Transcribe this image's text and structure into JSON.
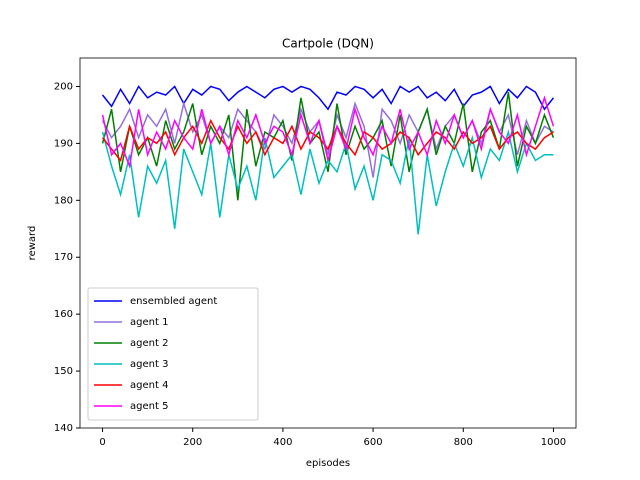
{
  "chart_data": {
    "type": "line",
    "title": "Cartpole (DQN)",
    "x_label": "episodes",
    "y_label": "reward",
    "x": [
      0,
      20,
      40,
      60,
      80,
      100,
      120,
      140,
      160,
      180,
      200,
      220,
      240,
      260,
      280,
      300,
      320,
      340,
      360,
      380,
      400,
      420,
      440,
      460,
      480,
      500,
      520,
      540,
      560,
      580,
      600,
      620,
      640,
      660,
      680,
      700,
      720,
      740,
      760,
      780,
      800,
      820,
      840,
      860,
      880,
      900,
      920,
      940,
      960,
      980,
      1000
    ],
    "series": [
      {
        "name": "ensembled agent",
        "color": "#0000ff",
        "values": [
          198.5,
          196.5,
          199.5,
          197,
          200,
          198,
          199,
          198.5,
          200,
          197,
          199.5,
          198.5,
          200,
          199.5,
          197.5,
          199,
          200,
          199,
          198,
          199.5,
          200,
          199,
          200,
          199.5,
          198,
          196,
          199,
          198.5,
          200,
          199.5,
          198,
          199.5,
          197,
          200,
          199,
          200,
          198,
          199,
          197.5,
          199.5,
          196.5,
          198.5,
          199,
          200,
          197,
          199.5,
          198,
          200,
          199,
          196,
          198
        ]
      },
      {
        "name": "agent 1",
        "color": "#9370db",
        "values": [
          194,
          191,
          193,
          196,
          191,
          195,
          193,
          196,
          190,
          197,
          192,
          195,
          190,
          193,
          191,
          196,
          194,
          192,
          189,
          195,
          193,
          190,
          196,
          192,
          194,
          188,
          195,
          191,
          197,
          193,
          184,
          196,
          194,
          190,
          195,
          192,
          196,
          189,
          193,
          195,
          191,
          194,
          190,
          196,
          192,
          195,
          188,
          194,
          190,
          193,
          192
        ]
      },
      {
        "name": "agent 2",
        "color": "#008000",
        "values": [
          190,
          196,
          185,
          193,
          188,
          191,
          186,
          194,
          189,
          192,
          197,
          188,
          193,
          190,
          195,
          180,
          196,
          186,
          192,
          191,
          194,
          187,
          198,
          190,
          192,
          185,
          197,
          188,
          193,
          189,
          191,
          194,
          186,
          195,
          185,
          192,
          196,
          188,
          193,
          190,
          197,
          185,
          192,
          194,
          189,
          199,
          186,
          193,
          190,
          195,
          191
        ]
      },
      {
        "name": "agent 3",
        "color": "#00bfbf",
        "values": [
          192,
          186,
          181,
          188,
          177,
          186,
          183,
          187,
          175,
          189,
          185,
          181,
          190,
          177,
          188,
          182,
          186,
          180,
          191,
          184,
          186,
          188,
          181,
          189,
          183,
          187,
          185,
          190,
          182,
          186,
          180,
          188,
          187,
          183,
          191,
          174,
          188,
          179,
          185,
          190,
          186,
          191,
          184,
          189,
          187,
          192,
          185,
          190,
          187,
          188,
          188
        ]
      },
      {
        "name": "agent 4",
        "color": "#ff0000",
        "values": [
          191,
          189,
          187,
          193,
          189,
          191,
          190,
          192,
          188,
          191,
          193,
          190,
          194,
          191,
          189,
          193,
          190,
          192,
          188,
          191,
          190,
          193,
          189,
          192,
          191,
          189,
          193,
          190,
          188,
          192,
          191,
          189,
          190,
          192,
          191,
          188,
          190,
          192,
          191,
          189,
          192,
          190,
          191,
          193,
          189,
          191,
          192,
          190,
          189,
          191,
          192
        ]
      },
      {
        "name": "agent 5",
        "color": "#ff00ff",
        "values": [
          195,
          188,
          190,
          186,
          196,
          188,
          192,
          189,
          194,
          191,
          189,
          196,
          190,
          193,
          188,
          194,
          191,
          195,
          190,
          193,
          192,
          188,
          195,
          190,
          194,
          187,
          193,
          189,
          196,
          191,
          188,
          193,
          190,
          196,
          189,
          192,
          188,
          194,
          190,
          195,
          191,
          194,
          189,
          196,
          192,
          190,
          195,
          188,
          193,
          198,
          193
        ]
      }
    ],
    "xlim": [
      -50,
      1050
    ],
    "ylim": [
      140,
      205
    ],
    "xticks": [
      0,
      200,
      400,
      600,
      800,
      1000
    ],
    "yticks": [
      140,
      150,
      160,
      170,
      180,
      190,
      200
    ],
    "legend": "lower left"
  }
}
